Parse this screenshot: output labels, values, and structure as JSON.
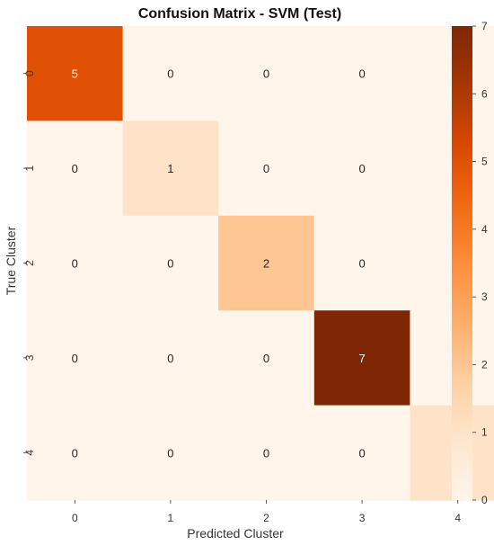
{
  "chart_data": {
    "type": "heatmap",
    "title": "Confusion Matrix - SVM (Test)",
    "xlabel": "Predicted Cluster",
    "ylabel": "True Cluster",
    "x_categories": [
      "0",
      "1",
      "2",
      "3",
      "4"
    ],
    "y_categories": [
      "0",
      "1",
      "2",
      "3",
      "4"
    ],
    "values": [
      [
        5,
        0,
        0,
        0,
        0
      ],
      [
        0,
        1,
        0,
        0,
        0
      ],
      [
        0,
        0,
        2,
        0,
        0
      ],
      [
        0,
        0,
        0,
        7,
        0
      ],
      [
        0,
        0,
        0,
        0,
        1
      ]
    ],
    "annotations": true,
    "colormap": "Oranges",
    "colorbar": {
      "range": [
        0,
        7
      ],
      "ticks": [
        0,
        1,
        2,
        3,
        4,
        5,
        6,
        7
      ]
    },
    "colors": {
      "low": "#fff5eb",
      "high": "#7f2704"
    }
  }
}
